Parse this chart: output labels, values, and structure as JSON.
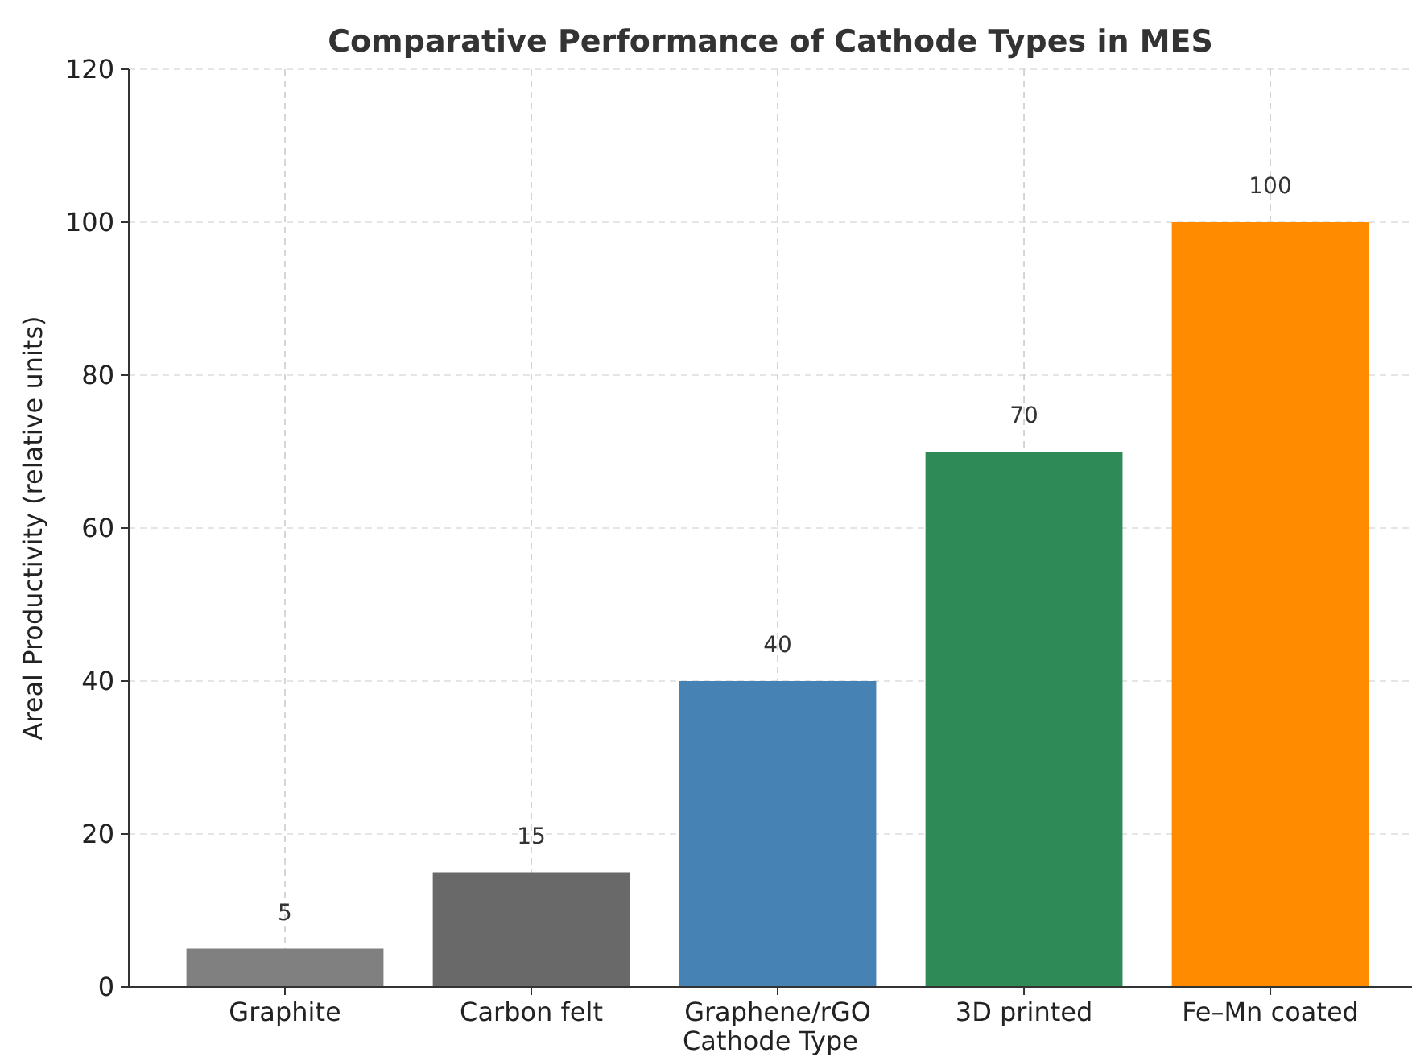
{
  "chart_data": {
    "type": "bar",
    "title": "Comparative Performance of Cathode Types in MES",
    "xlabel": "Cathode Type",
    "ylabel": "Areal Productivity (relative units)",
    "categories": [
      "Graphite",
      "Carbon felt",
      "Graphene/rGO",
      "3D printed",
      "Fe–Mn coated"
    ],
    "values": [
      5,
      15,
      40,
      70,
      100
    ],
    "colors": [
      "#808080",
      "#696969",
      "#4682b4",
      "#2e8b57",
      "#ff8c00"
    ],
    "ylim": [
      0,
      120
    ],
    "yticks": [
      0,
      20,
      40,
      60,
      80,
      100,
      120
    ],
    "grid": true,
    "data_labels": true
  }
}
